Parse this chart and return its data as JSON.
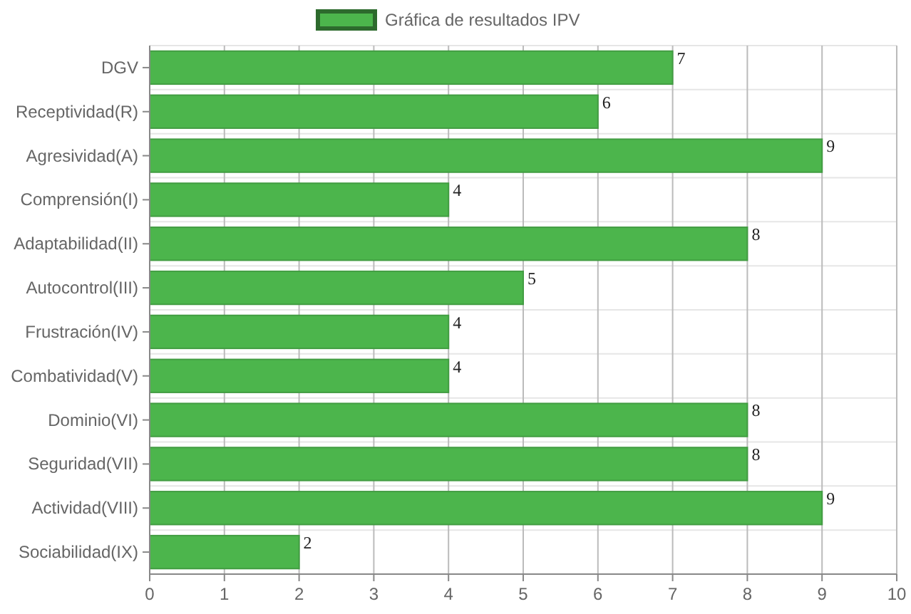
{
  "chart_data": {
    "type": "bar",
    "orientation": "horizontal",
    "categories": [
      "DGV",
      "Receptividad(R)",
      "Agresividad(A)",
      "Comprensión(I)",
      "Adaptabilidad(II)",
      "Autocontrol(III)",
      "Frustración(IV)",
      "Combatividad(V)",
      "Dominio(VI)",
      "Seguridad(VII)",
      "Actividad(VIII)",
      "Sociabilidad(IX)"
    ],
    "series": [
      {
        "name": "Gráfica de resultados IPV",
        "color": "#4cb54c",
        "values": [
          7,
          6,
          9,
          4,
          8,
          5,
          4,
          4,
          8,
          8,
          9,
          2
        ]
      }
    ],
    "xlim": [
      0,
      10
    ],
    "xticks": [
      0,
      1,
      2,
      3,
      4,
      5,
      6,
      7,
      8,
      9,
      10
    ],
    "grid": true,
    "legend": "top",
    "data_labels": true
  }
}
